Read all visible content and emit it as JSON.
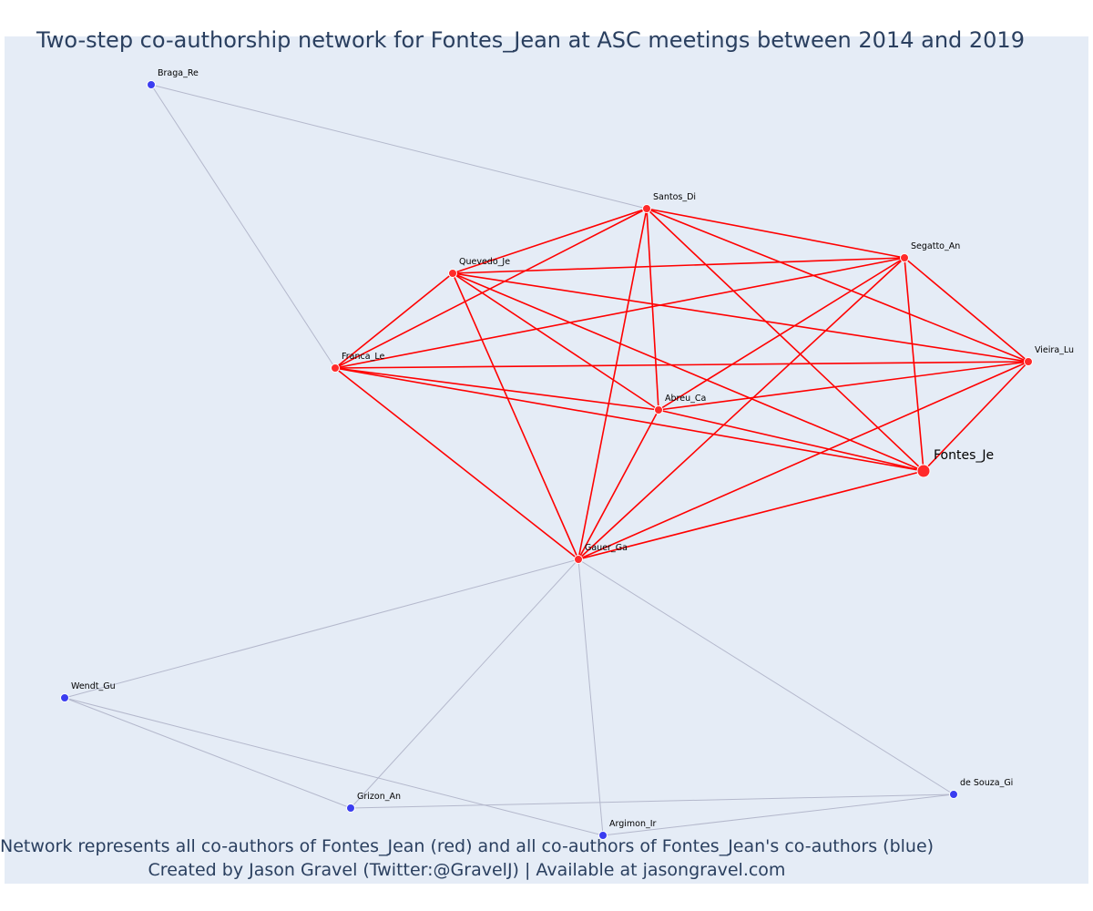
{
  "title": "Two-step co-authorship network for Fontes_Jean at ASC meetings between 2014 and 2019",
  "caption_lines": [
    "Network represents all co-authors of Fontes_Jean (red) and all co-authors of Fontes_Jean's co-authors (blue)",
    "Created by Jason Gravel (Twitter:@GravelJ) | Available at jasongravel.com"
  ],
  "colors": {
    "background": "#e5ecf6",
    "coauthor_node": "#ff2a2a",
    "second_step_node": "#3b3df0",
    "coauthor_edge": "#ff0000",
    "second_step_edge": "#b4b8cc",
    "text": "#2a3f5f"
  },
  "nodes": [
    {
      "id": "Fontes_Je",
      "label": "Fontes_Je",
      "group": "focal"
    },
    {
      "id": "Santos_Di",
      "label": "Santos_Di",
      "group": "coauthor"
    },
    {
      "id": "Segatto_An",
      "label": "Segatto_An",
      "group": "coauthor"
    },
    {
      "id": "Quevedo_Je",
      "label": "Quevedo_Je",
      "group": "coauthor"
    },
    {
      "id": "Franca_Le",
      "label": "Franca_Le",
      "group": "coauthor"
    },
    {
      "id": "Vieira_Lu",
      "label": "Vieira_Lu",
      "group": "coauthor"
    },
    {
      "id": "Abreu_Ca",
      "label": "Abreu_Ca",
      "group": "coauthor"
    },
    {
      "id": "Gauer_Ga",
      "label": "Gauer_Ga",
      "group": "coauthor"
    },
    {
      "id": "Braga_Re",
      "label": "Braga_Re",
      "group": "second_step"
    },
    {
      "id": "Wendt_Gu",
      "label": "Wendt_Gu",
      "group": "second_step"
    },
    {
      "id": "Grizon_An",
      "label": "Grizon_An",
      "group": "second_step"
    },
    {
      "id": "Argimon_Ir",
      "label": "Argimon_Ir",
      "group": "second_step"
    },
    {
      "id": "de Souza_Gi",
      "label": "de Souza_Gi",
      "group": "second_step"
    }
  ],
  "edges": [
    [
      "Santos_Di",
      "Segatto_An",
      "coauthor"
    ],
    [
      "Santos_Di",
      "Quevedo_Je",
      "coauthor"
    ],
    [
      "Santos_Di",
      "Franca_Le",
      "coauthor"
    ],
    [
      "Santos_Di",
      "Vieira_Lu",
      "coauthor"
    ],
    [
      "Santos_Di",
      "Abreu_Ca",
      "coauthor"
    ],
    [
      "Santos_Di",
      "Fontes_Je",
      "coauthor"
    ],
    [
      "Santos_Di",
      "Gauer_Ga",
      "coauthor"
    ],
    [
      "Segatto_An",
      "Quevedo_Je",
      "coauthor"
    ],
    [
      "Segatto_An",
      "Franca_Le",
      "coauthor"
    ],
    [
      "Segatto_An",
      "Vieira_Lu",
      "coauthor"
    ],
    [
      "Segatto_An",
      "Abreu_Ca",
      "coauthor"
    ],
    [
      "Segatto_An",
      "Fontes_Je",
      "coauthor"
    ],
    [
      "Segatto_An",
      "Gauer_Ga",
      "coauthor"
    ],
    [
      "Quevedo_Je",
      "Franca_Le",
      "coauthor"
    ],
    [
      "Quevedo_Je",
      "Vieira_Lu",
      "coauthor"
    ],
    [
      "Quevedo_Je",
      "Abreu_Ca",
      "coauthor"
    ],
    [
      "Quevedo_Je",
      "Fontes_Je",
      "coauthor"
    ],
    [
      "Quevedo_Je",
      "Gauer_Ga",
      "coauthor"
    ],
    [
      "Franca_Le",
      "Vieira_Lu",
      "coauthor"
    ],
    [
      "Franca_Le",
      "Abreu_Ca",
      "coauthor"
    ],
    [
      "Franca_Le",
      "Fontes_Je",
      "coauthor"
    ],
    [
      "Franca_Le",
      "Gauer_Ga",
      "coauthor"
    ],
    [
      "Vieira_Lu",
      "Abreu_Ca",
      "coauthor"
    ],
    [
      "Vieira_Lu",
      "Fontes_Je",
      "coauthor"
    ],
    [
      "Vieira_Lu",
      "Gauer_Ga",
      "coauthor"
    ],
    [
      "Abreu_Ca",
      "Fontes_Je",
      "coauthor"
    ],
    [
      "Abreu_Ca",
      "Gauer_Ga",
      "coauthor"
    ],
    [
      "Fontes_Je",
      "Gauer_Ga",
      "coauthor"
    ],
    [
      "Braga_Re",
      "Santos_Di",
      "second_step"
    ],
    [
      "Braga_Re",
      "Franca_Le",
      "second_step"
    ],
    [
      "Gauer_Ga",
      "Wendt_Gu",
      "second_step"
    ],
    [
      "Gauer_Ga",
      "Grizon_An",
      "second_step"
    ],
    [
      "Gauer_Ga",
      "Argimon_Ir",
      "second_step"
    ],
    [
      "Gauer_Ga",
      "de Souza_Gi",
      "second_step"
    ],
    [
      "Wendt_Gu",
      "Grizon_An",
      "second_step"
    ],
    [
      "Wendt_Gu",
      "Argimon_Ir",
      "second_step"
    ],
    [
      "Grizon_An",
      "de Souza_Gi",
      "second_step"
    ],
    [
      "Argimon_Ir",
      "de Souza_Gi",
      "second_step"
    ]
  ]
}
